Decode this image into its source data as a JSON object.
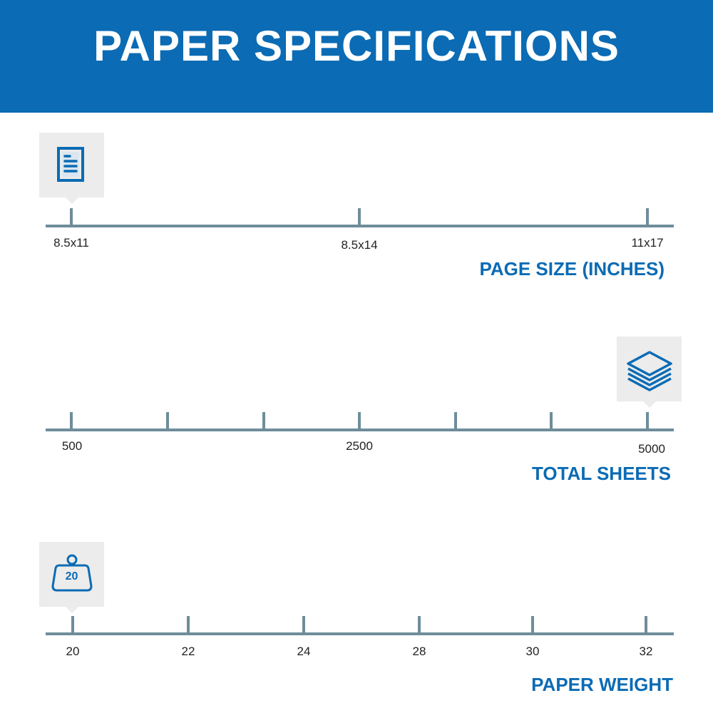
{
  "header": {
    "title": "PAPER SPECIFICATIONS"
  },
  "colors": {
    "brand": "#0b6bb4",
    "axis": "#6e8d9a",
    "icon_bg": "#ececec"
  },
  "scales": [
    {
      "title": "PAGE SIZE (INCHES)",
      "icon": "document-icon",
      "ticks": [
        "8.5x11",
        "8.5x14",
        "11x17"
      ],
      "selected": "8.5x11"
    },
    {
      "title": "TOTAL SHEETS",
      "icon": "paper-stack-icon",
      "ticks": [
        "500",
        "",
        "",
        "2500",
        "",
        "",
        "5000"
      ],
      "selected": "5000"
    },
    {
      "title": "PAPER WEIGHT",
      "icon": "weight-icon",
      "icon_text": "20",
      "ticks": [
        "20",
        "22",
        "24",
        "28",
        "30",
        "32"
      ],
      "selected": "20"
    }
  ]
}
